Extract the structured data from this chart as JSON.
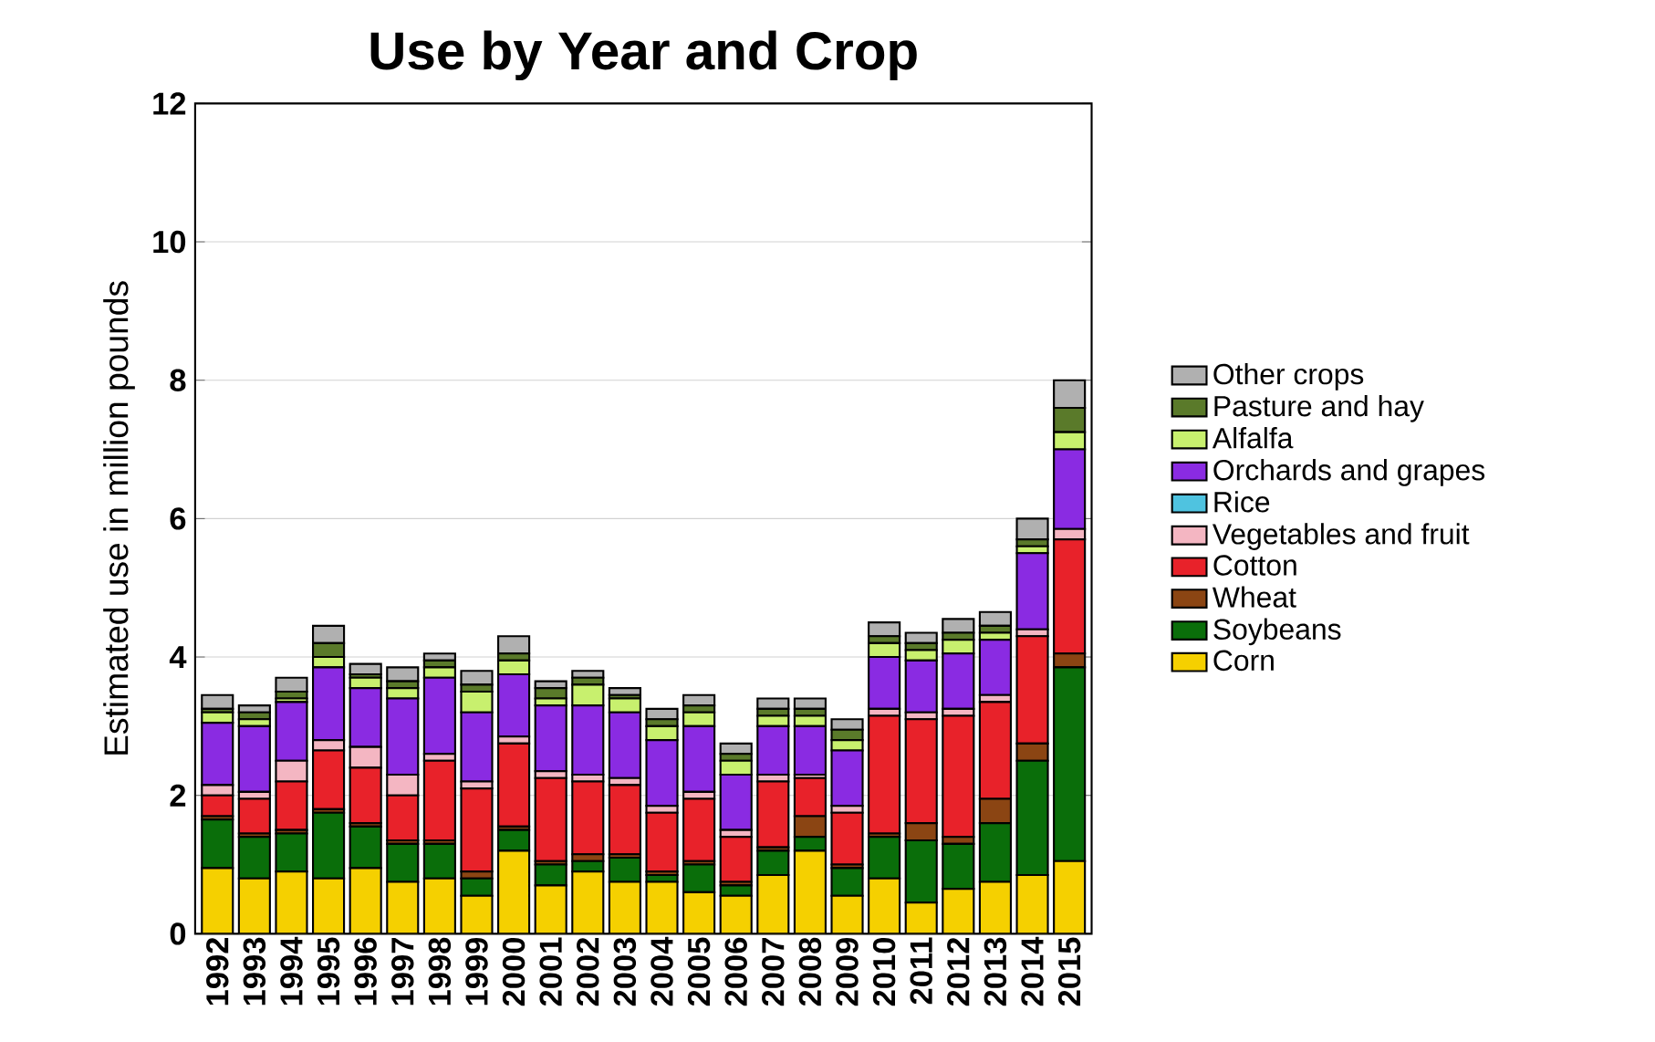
{
  "chart_data": {
    "type": "bar",
    "stacked": true,
    "title": "Use by Year and Crop",
    "ylabel": "Estimated use in million pounds",
    "categories": [
      "1992",
      "1993",
      "1994",
      "1995",
      "1996",
      "1997",
      "1998",
      "1999",
      "2000",
      "2001",
      "2002",
      "2003",
      "2004",
      "2005",
      "2006",
      "2007",
      "2008",
      "2009",
      "2010",
      "2011",
      "2012",
      "2013",
      "2014",
      "2015"
    ],
    "ylim": [
      0,
      12
    ],
    "yticks": [
      0,
      2,
      4,
      6,
      8,
      10,
      12
    ],
    "grid": "y",
    "legend": "right",
    "series": [
      {
        "name": "Corn",
        "color": "#f5d000",
        "values": [
          0.95,
          0.8,
          0.9,
          0.8,
          0.95,
          0.75,
          0.8,
          0.55,
          1.2,
          0.7,
          0.9,
          0.75,
          0.75,
          0.6,
          0.55,
          0.85,
          1.2,
          0.55,
          0.8,
          0.45,
          0.65,
          0.75,
          0.85,
          1.05
        ]
      },
      {
        "name": "Soybeans",
        "color": "#0a6e0a",
        "values": [
          0.7,
          0.6,
          0.55,
          0.95,
          0.6,
          0.55,
          0.5,
          0.25,
          0.3,
          0.3,
          0.15,
          0.35,
          0.1,
          0.4,
          0.15,
          0.35,
          0.2,
          0.4,
          0.6,
          0.9,
          0.65,
          0.85,
          1.65,
          2.8
        ]
      },
      {
        "name": "Wheat",
        "color": "#8b4513",
        "values": [
          0.05,
          0.05,
          0.05,
          0.05,
          0.05,
          0.05,
          0.05,
          0.1,
          0.05,
          0.05,
          0.1,
          0.05,
          0.05,
          0.05,
          0.05,
          0.05,
          0.3,
          0.05,
          0.05,
          0.25,
          0.1,
          0.35,
          0.25,
          0.2
        ]
      },
      {
        "name": "Cotton",
        "color": "#e8222a",
        "values": [
          0.3,
          0.5,
          0.7,
          0.85,
          0.8,
          0.65,
          1.15,
          1.2,
          1.2,
          1.2,
          1.05,
          1.0,
          0.85,
          0.9,
          0.65,
          0.95,
          0.55,
          0.75,
          1.7,
          1.5,
          1.75,
          1.4,
          1.55,
          1.65
        ]
      },
      {
        "name": "Vegetables and fruit",
        "color": "#f4b6c2",
        "values": [
          0.15,
          0.1,
          0.3,
          0.15,
          0.3,
          0.3,
          0.1,
          0.1,
          0.1,
          0.1,
          0.1,
          0.1,
          0.1,
          0.1,
          0.1,
          0.1,
          0.05,
          0.1,
          0.1,
          0.1,
          0.1,
          0.1,
          0.1,
          0.15
        ]
      },
      {
        "name": "Rice",
        "color": "#4fc3e0",
        "values": [
          0,
          0,
          0,
          0,
          0,
          0,
          0,
          0,
          0,
          0,
          0,
          0,
          0,
          0,
          0,
          0,
          0,
          0,
          0,
          0,
          0,
          0,
          0,
          0
        ]
      },
      {
        "name": "Orchards and grapes",
        "color": "#8a2be2",
        "values": [
          0.9,
          0.95,
          0.85,
          1.05,
          0.85,
          1.1,
          1.1,
          1.0,
          0.9,
          0.95,
          1.0,
          0.95,
          0.95,
          0.95,
          0.8,
          0.7,
          0.7,
          0.8,
          0.75,
          0.75,
          0.8,
          0.8,
          1.1,
          1.15
        ]
      },
      {
        "name": "Alfalfa",
        "color": "#c8f06e",
        "values": [
          0.15,
          0.1,
          0.05,
          0.15,
          0.15,
          0.15,
          0.15,
          0.3,
          0.2,
          0.1,
          0.3,
          0.2,
          0.2,
          0.2,
          0.2,
          0.15,
          0.15,
          0.15,
          0.2,
          0.15,
          0.2,
          0.1,
          0.1,
          0.25
        ]
      },
      {
        "name": "Pasture and hay",
        "color": "#5a7a2a",
        "values": [
          0.05,
          0.1,
          0.1,
          0.2,
          0.05,
          0.1,
          0.1,
          0.1,
          0.1,
          0.15,
          0.1,
          0.05,
          0.1,
          0.1,
          0.1,
          0.1,
          0.1,
          0.15,
          0.1,
          0.1,
          0.1,
          0.1,
          0.1,
          0.35
        ]
      },
      {
        "name": "Other crops",
        "color": "#b0b0b0",
        "values": [
          0.2,
          0.1,
          0.2,
          0.25,
          0.15,
          0.2,
          0.1,
          0.2,
          0.25,
          0.1,
          0.1,
          0.1,
          0.15,
          0.15,
          0.15,
          0.15,
          0.15,
          0.15,
          0.2,
          0.15,
          0.2,
          0.2,
          0.3,
          0.4
        ]
      }
    ]
  }
}
